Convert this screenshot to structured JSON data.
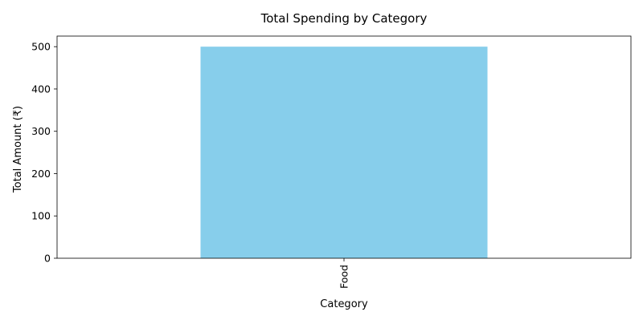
{
  "chart_data": {
    "type": "bar",
    "title": "Total Spending by Category",
    "xlabel": "Category",
    "ylabel": "Total Amount (₹)",
    "categories": [
      "Food"
    ],
    "values": [
      500
    ],
    "ylim": [
      0,
      525
    ],
    "yticks": [
      0,
      100,
      200,
      300,
      400,
      500
    ],
    "grid": false,
    "bar_color": "#87CEEB",
    "x_tick_rotation": "vertical"
  }
}
